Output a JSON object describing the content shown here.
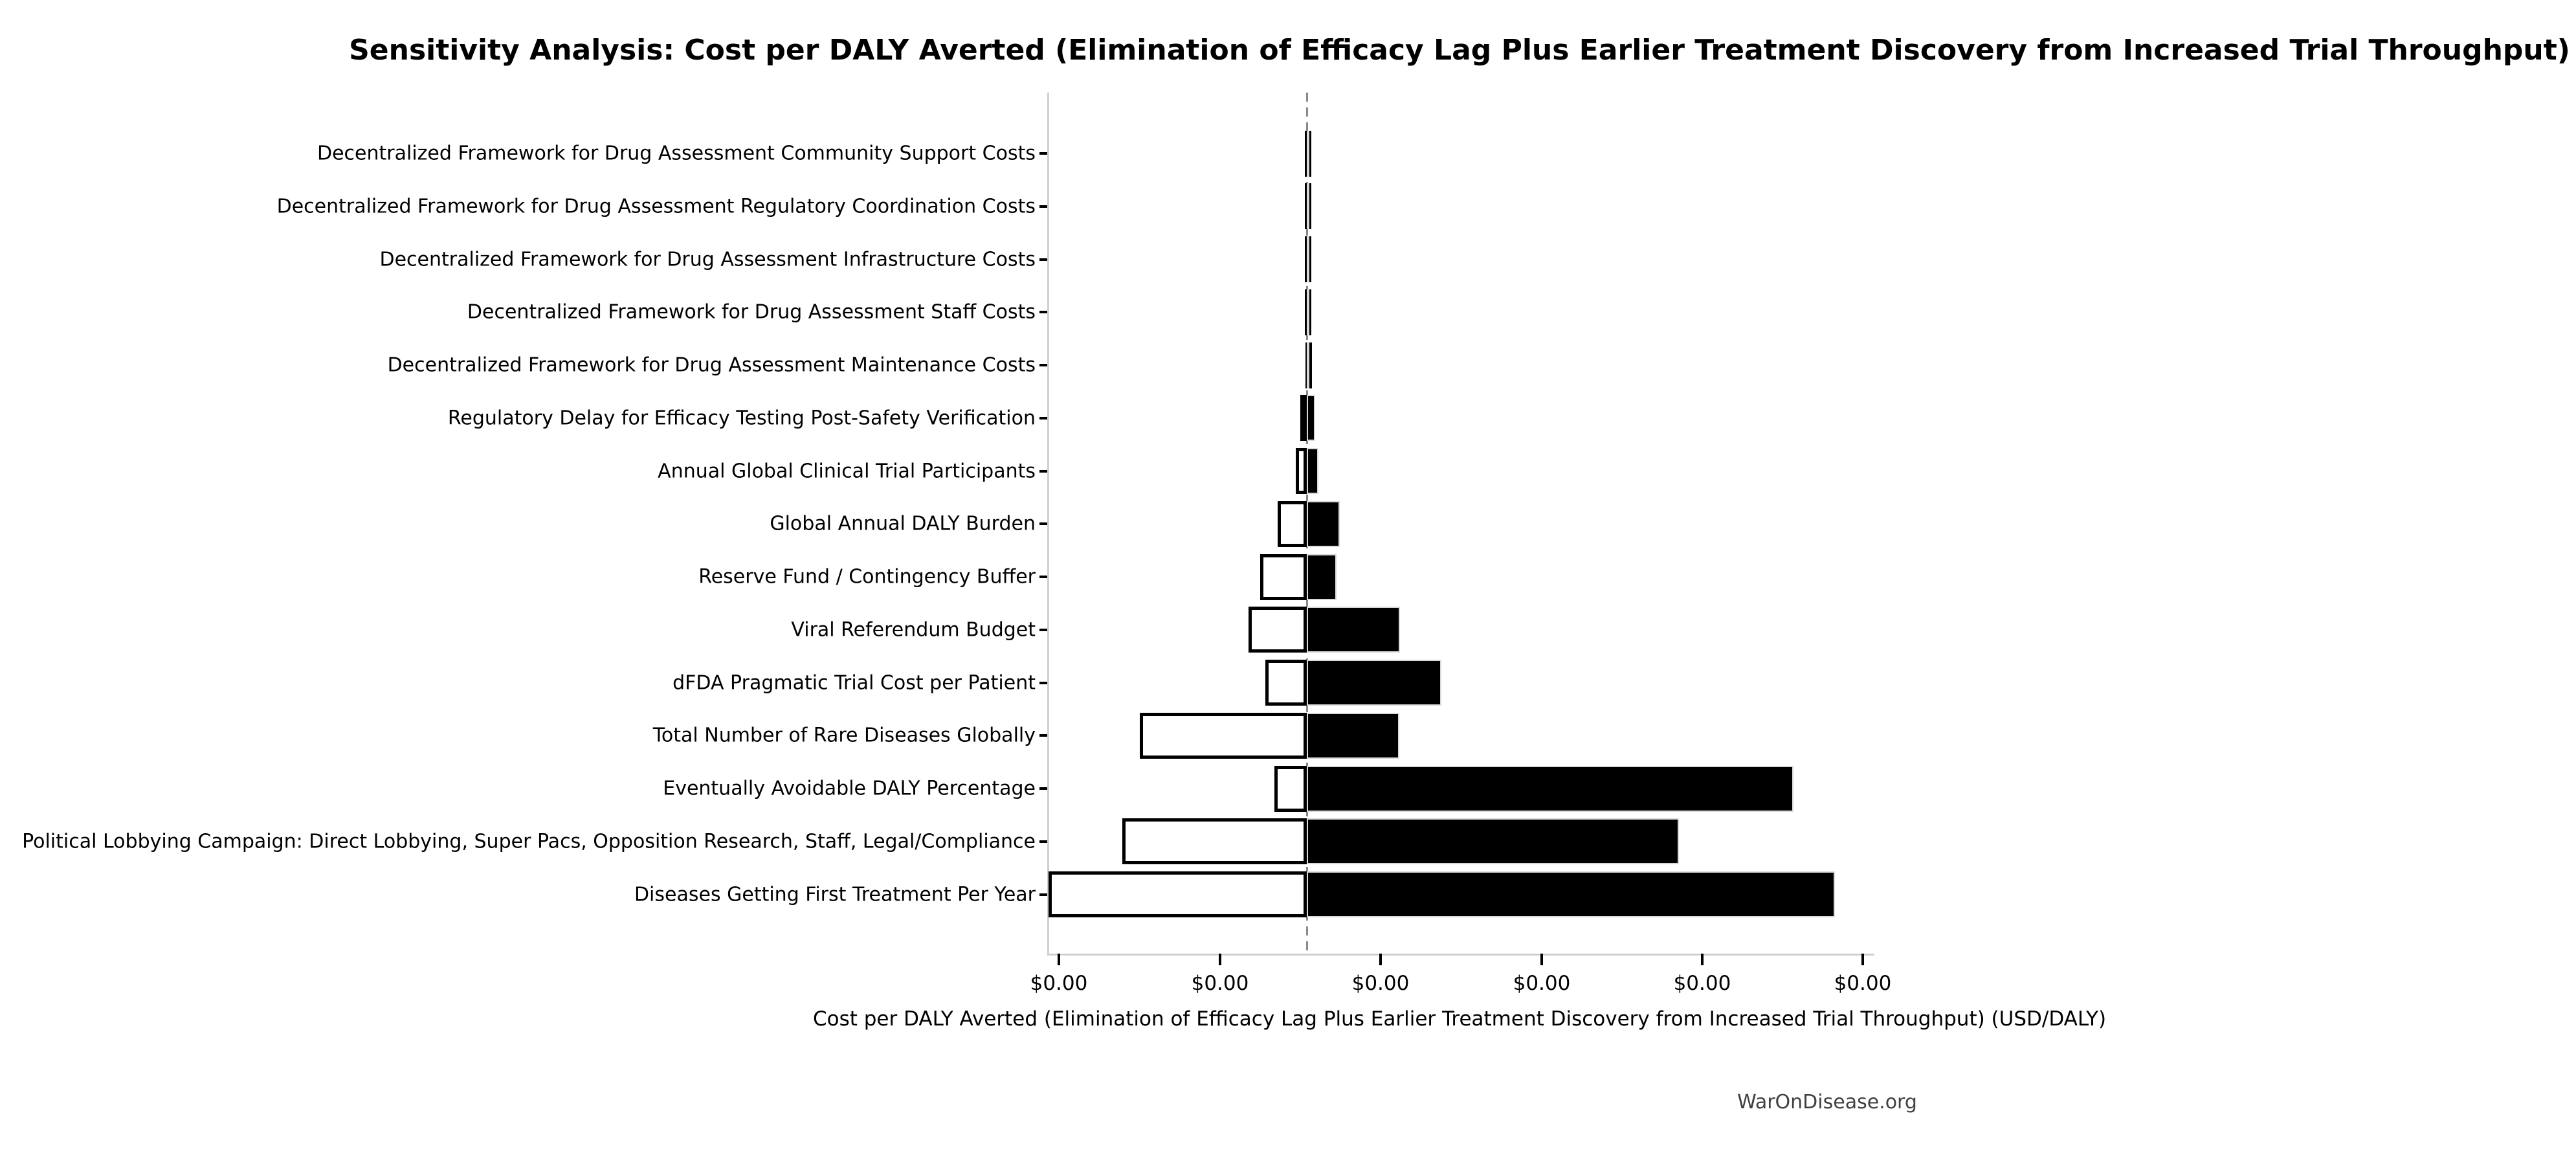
{
  "watermark": "WarOnDisease.org",
  "colors": {
    "background": "#ffffff",
    "bar_high_fill": "#000000",
    "bar_low_fill": "#ffffff",
    "bar_low_edge": "#000000",
    "bar_high_edge": "#d9d9d9",
    "spine": "#cfcfcf",
    "baseline_dash": "#8a8a8a",
    "text": "#000000",
    "watermark_text": "#404040"
  },
  "chart_data": {
    "type": "bar",
    "subtype": "tornado-sensitivity",
    "orientation": "horizontal",
    "title": "Sensitivity Analysis: Cost per DALY Averted (Elimination of Efficacy Lag Plus Earlier Treatment Discovery from Increased Trial Throughput)",
    "xlabel": "Cost per DALY Averted (Elimination of Efficacy Lag Plus Earlier Treatment Discovery from Increased Trial Throughput) (USD/DALY)",
    "ylabel": "",
    "legend": "none",
    "grid": "off",
    "baseline_pct": 31.45,
    "x_ticks": [
      {
        "label": "$0.00",
        "pos_pct": 1.41
      },
      {
        "label": "$0.00",
        "pos_pct": 20.94
      },
      {
        "label": "$0.00",
        "pos_pct": 40.39
      },
      {
        "label": "$0.00",
        "pos_pct": 59.92
      },
      {
        "label": "$0.00",
        "pos_pct": 79.37
      },
      {
        "label": "$0.00",
        "pos_pct": 98.82
      }
    ],
    "value_note": "All x tick labels render as $0.00; bar extents estimated from pixels. low_rel/high_rel are offsets from the dashed baseline measured in x-tick-interval units; *_pct are positions across the plot width.",
    "bars": [
      {
        "label": "Decentralized Framework for Drug Assessment Community Support Costs",
        "low_pct": 31.22,
        "high_pct": 31.76,
        "low_rel": -0.012,
        "high_rel": 0.016
      },
      {
        "label": "Decentralized Framework for Drug Assessment Regulatory Coordination Costs",
        "low_pct": 31.22,
        "high_pct": 31.76,
        "low_rel": -0.012,
        "high_rel": 0.016
      },
      {
        "label": "Decentralized Framework for Drug Assessment Infrastructure Costs",
        "low_pct": 31.22,
        "high_pct": 31.73,
        "low_rel": -0.012,
        "high_rel": 0.014
      },
      {
        "label": "Decentralized Framework for Drug Assessment Staff Costs",
        "low_pct": 31.25,
        "high_pct": 31.73,
        "low_rel": -0.01,
        "high_rel": 0.014
      },
      {
        "label": "Decentralized Framework for Drug Assessment Maintenance Costs",
        "low_pct": 31.29,
        "high_pct": 31.69,
        "low_rel": -0.008,
        "high_rel": 0.012
      },
      {
        "label": "Regulatory Delay for Efficacy Testing Post-Safety Verification",
        "low_pct": 30.63,
        "high_pct": 32.47,
        "low_rel": -0.042,
        "high_rel": 0.052
      },
      {
        "label": "Annual Global Clinical Trial Participants",
        "low_pct": 30.12,
        "high_pct": 32.9,
        "low_rel": -0.068,
        "high_rel": 0.074
      },
      {
        "label": "Global Annual DALY Burden",
        "low_pct": 27.92,
        "high_pct": 35.45,
        "low_rel": -0.181,
        "high_rel": 0.205
      },
      {
        "label": "Reserve Fund / Contingency Buffer",
        "low_pct": 25.8,
        "high_pct": 35.06,
        "low_rel": -0.29,
        "high_rel": 0.185
      },
      {
        "label": "Viral Referendum Budget",
        "low_pct": 24.43,
        "high_pct": 42.77,
        "low_rel": -0.36,
        "high_rel": 0.581
      },
      {
        "label": "dFDA Pragmatic Trial Cost per Patient",
        "low_pct": 26.43,
        "high_pct": 47.74,
        "low_rel": -0.258,
        "high_rel": 0.836
      },
      {
        "label": "Total Number of Rare Diseases Globally",
        "low_pct": 11.22,
        "high_pct": 42.69,
        "low_rel": -1.038,
        "high_rel": 0.577
      },
      {
        "label": "Eventually Avoidable DALY Percentage",
        "low_pct": 27.53,
        "high_pct": 90.43,
        "low_rel": -0.201,
        "high_rel": 3.026
      },
      {
        "label": "Political Lobbying Campaign: Direct Lobbying, Super Pacs, Opposition Research, Staff, Legal/Compliance",
        "low_pct": 9.1,
        "high_pct": 76.55,
        "low_rel": -1.147,
        "high_rel": 2.314
      },
      {
        "label": "Diseases Getting First Treatment Per Year",
        "low_pct": 0.16,
        "high_pct": 95.45,
        "low_rel": -1.606,
        "high_rel": 3.284
      }
    ]
  }
}
